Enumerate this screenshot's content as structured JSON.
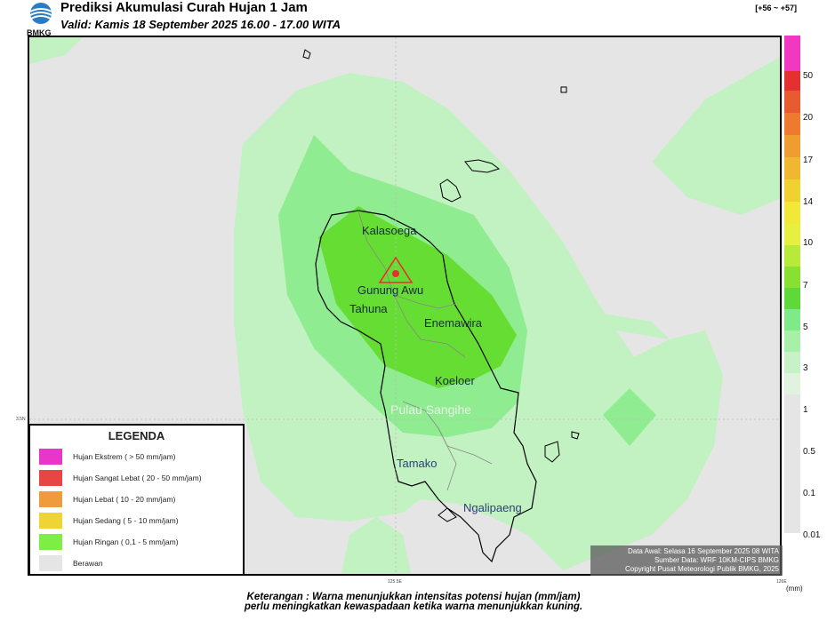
{
  "header": {
    "logo_text": "BMKG",
    "title": "Prediksi Akumulasi Curah Hujan 1 Jam",
    "subtitle": "Valid: Kamis 18 September 2025 16.00 - 17.00 WITA",
    "coord": "[+56 ~ +57]"
  },
  "map": {
    "places": {
      "kalasoega": "Kalasoega",
      "gunung_awu": "Gunung Awu",
      "tahuna": "Tahuna",
      "enemawira": "Enemawira",
      "koeloer": "Koeloer",
      "pulau_sangihe": "Pulau Sangihe",
      "tamako": "Tamako",
      "ngalipaeng": "Ngalipaeng"
    },
    "axis_labels": {
      "lon1": "125.5E",
      "lon2": "126E",
      "lat1": "3.5N"
    },
    "volcano_marker": "volcano-triangle-icon",
    "colors": {
      "berawan": "#e5e5e5",
      "light": "#c2f1c2",
      "mid": "#90ec90",
      "strong": "#6ae06a",
      "core": "#66dd33"
    }
  },
  "legend": {
    "title": "LEGENDA",
    "items": [
      {
        "label": "Hujan Ekstrem ( > 50 mm/jam)",
        "color": "#e935c8"
      },
      {
        "label": "Hujan Sangat Lebat ( 20 - 50 mm/jam)",
        "color": "#e84545"
      },
      {
        "label": "Hujan Lebat ( 10 - 20 mm/jam)",
        "color": "#ee9b3c"
      },
      {
        "label": "Hujan Sedang ( 5 - 10 mm/jam)",
        "color": "#eed535"
      },
      {
        "label": "Hujan Ringan ( 0,1 - 5 mm/jam)",
        "color": "#7eee44"
      },
      {
        "label": "Berawan",
        "color": "#e5e5e5"
      }
    ]
  },
  "info": {
    "line1": "Data Awal: Selasa 16 September 2025 08 WITA",
    "line2": "Sumber Data: WRF 10KM-CIPS BMKG",
    "line3": "Copyright Pusat Meteorologi Publik BMKG, 2025"
  },
  "scale": {
    "unit": "(mm)",
    "colors": [
      "#f038c0",
      "#e43030",
      "#e85a30",
      "#ee8030",
      "#ef9d30",
      "#efb830",
      "#efd230",
      "#f1e838",
      "#e6f040",
      "#b8ea3a",
      "#88e030",
      "#5fd83a",
      "#7eea88",
      "#a6f0a8",
      "#c6f2c6",
      "#dff3df",
      "#e5e5e5"
    ],
    "ticks": [
      "50",
      "20",
      "17",
      "14",
      "10",
      "7",
      "5",
      "3",
      "1",
      "0.5",
      "0.1",
      "0.01"
    ]
  },
  "footer": {
    "line1": "Keterangan : Warna menunjukkan intensitas potensi hujan (mm/jam)",
    "line2": "perlu meningkatkan kewaspadaan ketika warna menunjukkan kuning."
  }
}
